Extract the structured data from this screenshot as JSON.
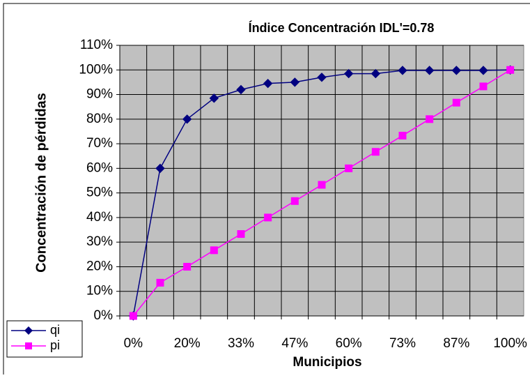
{
  "chart_data": {
    "type": "line",
    "title": "Índice Concentración IDL'=0.78",
    "x_label": "Municipios",
    "y_label": "Concentración de pérdidas",
    "categories": [
      "0%",
      null,
      "20%",
      null,
      "33%",
      null,
      "47%",
      null,
      "60%",
      null,
      "73%",
      null,
      "87%",
      null,
      "100%"
    ],
    "series": [
      {
        "name": "qi",
        "color": "#000080",
        "marker": "diamond",
        "values": [
          0,
          60,
          80,
          88.5,
          92,
          94.5,
          95,
          97,
          98.5,
          98.5,
          99.8,
          99.8,
          99.8,
          99.8,
          100
        ]
      },
      {
        "name": "pi",
        "color": "#ff00ff",
        "marker": "square",
        "values": [
          0,
          13.5,
          20,
          26.7,
          33.3,
          40,
          46.7,
          53.3,
          60,
          66.7,
          73.3,
          80,
          86.7,
          93.3,
          100
        ]
      }
    ],
    "ylim": [
      0,
      110
    ],
    "yticks": [
      {
        "value": 0,
        "label": "0%"
      },
      {
        "value": 10,
        "label": "10%"
      },
      {
        "value": 20,
        "label": "20%"
      },
      {
        "value": 30,
        "label": "30%"
      },
      {
        "value": 40,
        "label": "40%"
      },
      {
        "value": 50,
        "label": "50%"
      },
      {
        "value": 60,
        "label": "60%"
      },
      {
        "value": 70,
        "label": "70%"
      },
      {
        "value": 80,
        "label": "80%"
      },
      {
        "value": 90,
        "label": "90%"
      },
      {
        "value": 100,
        "label": "100%"
      },
      {
        "value": 110,
        "label": "110%"
      }
    ],
    "grid": true,
    "legend": "lower left"
  }
}
